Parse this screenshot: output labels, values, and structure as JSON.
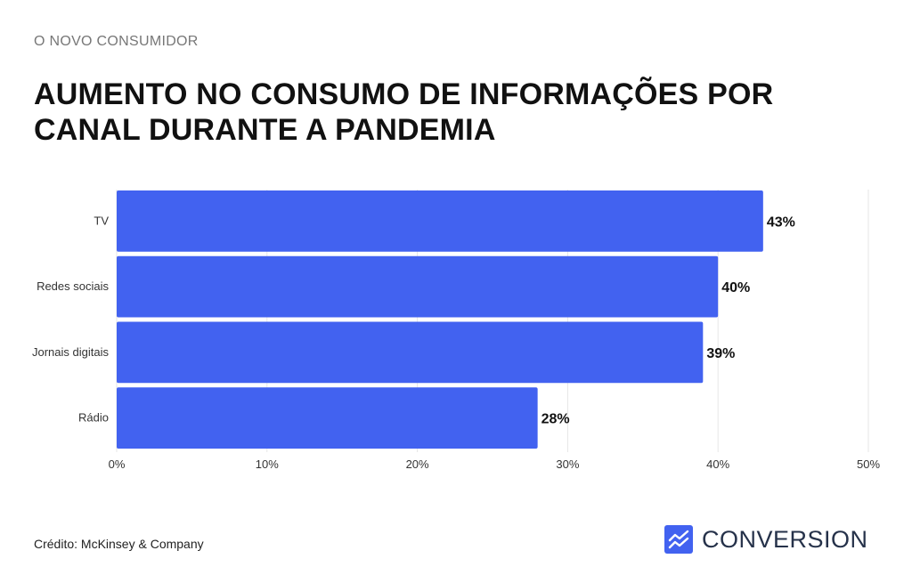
{
  "header": {
    "kicker": "O NOVO CONSUMIDOR",
    "title": "AUMENTO NO CONSUMO DE INFORMAÇÕES POR CANAL DURANTE A PANDEMIA"
  },
  "footer": {
    "credit": "Crédito: McKinsey & Company",
    "brand_name": "CONVERSION",
    "brand_icon": "line-chart-icon"
  },
  "colors": {
    "bar": "#4262f0",
    "brand_icon_bg": "#4262f0",
    "grid": "#e6e6e6",
    "brand_text": "#26324a"
  },
  "chart_data": {
    "type": "bar",
    "orientation": "horizontal",
    "categories": [
      "TV",
      "Redes sociais",
      "Jornais digitais",
      "Rádio"
    ],
    "values": [
      43,
      40,
      39,
      28
    ],
    "value_labels": [
      "43%",
      "40%",
      "39%",
      "28%"
    ],
    "xlim": [
      0,
      50
    ],
    "xticks": [
      0,
      10,
      20,
      30,
      40,
      50
    ],
    "xtick_labels": [
      "0%",
      "10%",
      "20%",
      "30%",
      "40%",
      "50%"
    ],
    "grid": true
  }
}
